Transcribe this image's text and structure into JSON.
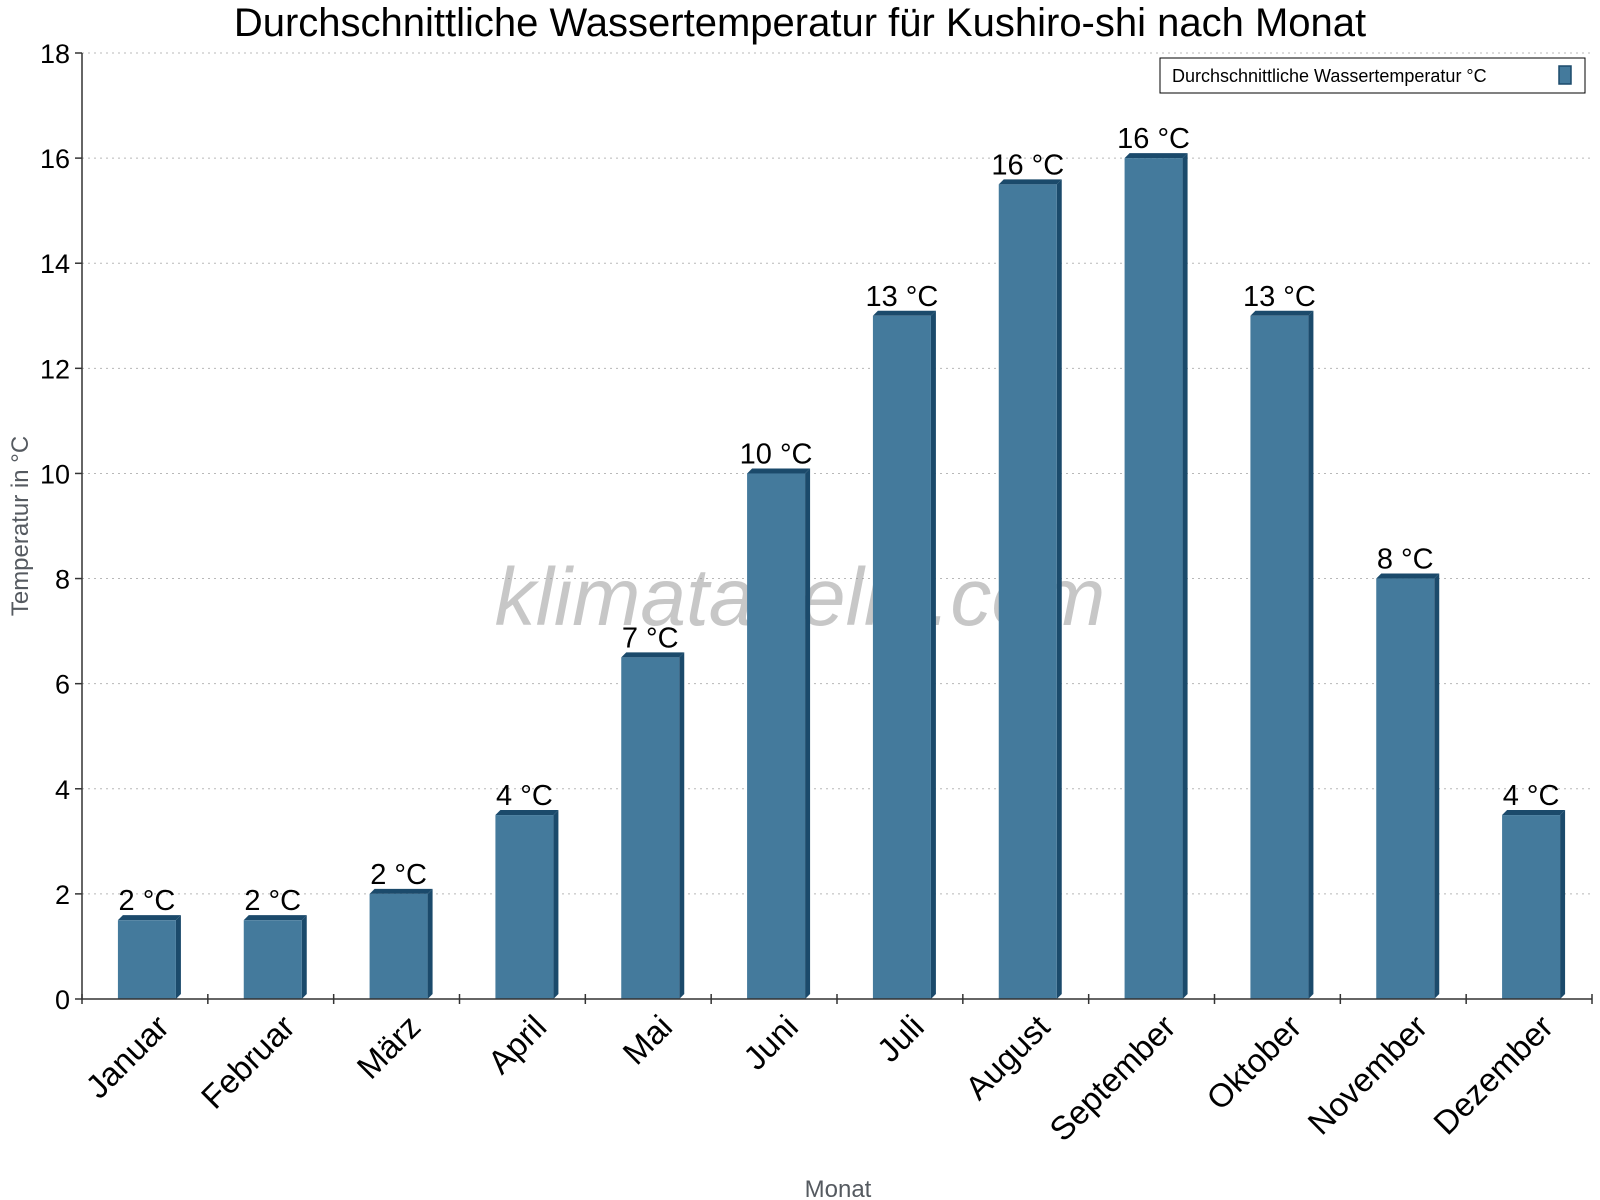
{
  "chart_data": {
    "type": "bar",
    "title": "Durchschnittliche Wassertemperatur für Kushiro-shi nach Monat",
    "xlabel": "Monat",
    "ylabel": "Temperatur in °C",
    "categories": [
      "Januar",
      "Februar",
      "März",
      "April",
      "Mai",
      "Juni",
      "Juli",
      "August",
      "September",
      "Oktober",
      "November",
      "Dezember"
    ],
    "series": [
      {
        "name": "Durchschnittliche Wassertemperatur °C",
        "values": [
          1.5,
          1.5,
          2.0,
          3.5,
          6.5,
          10.0,
          13.0,
          15.5,
          16.0,
          13.0,
          8.0,
          3.5
        ],
        "labels": [
          "2 °C",
          "2 °C",
          "2 °C",
          "4 °C",
          "7 °C",
          "10 °C",
          "13 °C",
          "16 °C",
          "16 °C",
          "13 °C",
          "8 °C",
          "4 °C"
        ]
      }
    ],
    "ylim": [
      0,
      18
    ],
    "yticks": [
      0,
      2,
      4,
      6,
      8,
      10,
      12,
      14,
      16,
      18
    ],
    "grid": true,
    "legend_position": "top-right",
    "bar_color": "#447a9c",
    "bar_edge_color": "#1b4a6b"
  },
  "watermark": "klimatabelle.com"
}
